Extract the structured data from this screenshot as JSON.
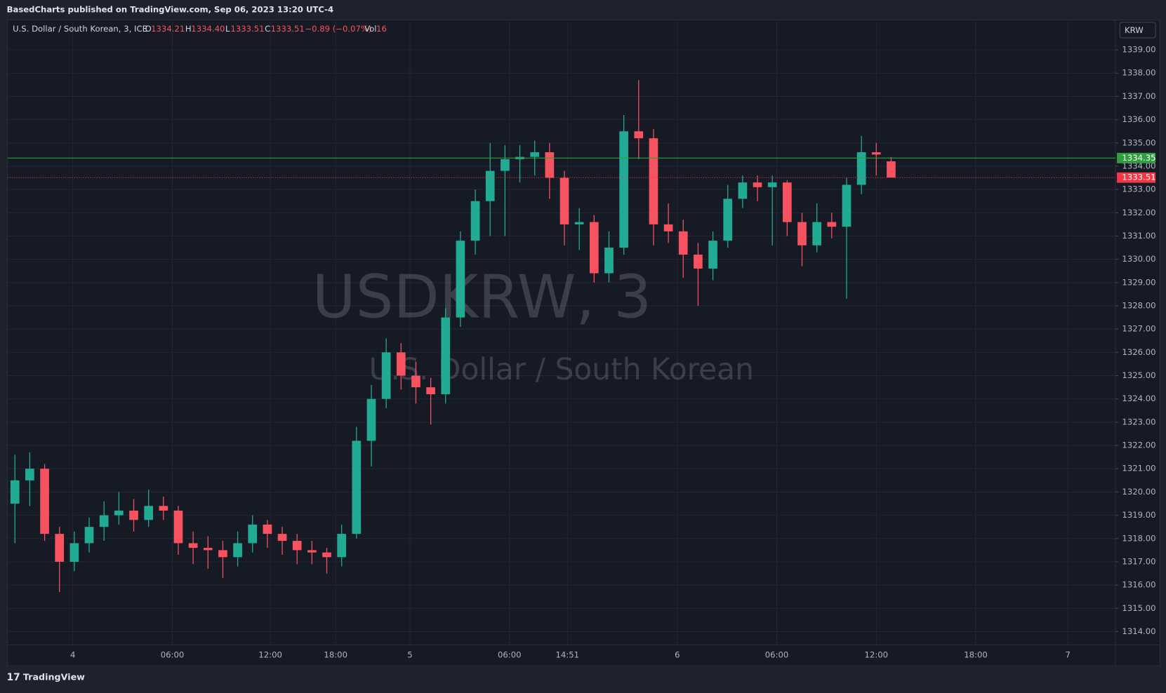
{
  "header": {
    "published": "BasedCharts published on TradingView.com, Sep 06, 2023 13:20 UTC-4"
  },
  "legend": {
    "name": "U.S. Dollar / South Korean, 3, ICE",
    "open_label": "O",
    "open": 1334.21,
    "high_label": "H",
    "high": {
      "value": 1334.4,
      "label": "1334.40"
    },
    "low_label": "L",
    "low": 1333.51,
    "close_label": "C",
    "close": 1333.51,
    "change": "−0.89 (−0.07%)",
    "vol_label": "Vol",
    "vol": 16
  },
  "currency": "KRW",
  "watermark": {
    "symbol": "USDKRW, 3",
    "description": "U.S. Dollar / South Korean"
  },
  "footer": {
    "brand": "TradingView"
  },
  "chart_data": {
    "type": "candlestick",
    "up_color": "#22ab94",
    "down_color": "#f7525f",
    "ylim": [
      1313.43,
      1340.28
    ],
    "yticks": [
      {
        "value": 1314,
        "label": "1314.00"
      },
      {
        "value": 1315,
        "label": "1315.00"
      },
      {
        "value": 1316,
        "label": "1316.00"
      },
      {
        "value": 1317,
        "label": "1317.00"
      },
      {
        "value": 1318,
        "label": "1318.00"
      },
      {
        "value": 1319,
        "label": "1319.00"
      },
      {
        "value": 1320,
        "label": "1320.00"
      },
      {
        "value": 1321,
        "label": "1321.00"
      },
      {
        "value": 1322,
        "label": "1322.00"
      },
      {
        "value": 1323,
        "label": "1323.00"
      },
      {
        "value": 1324,
        "label": "1324.00"
      },
      {
        "value": 1325,
        "label": "1325.00"
      },
      {
        "value": 1326,
        "label": "1326.00"
      },
      {
        "value": 1327,
        "label": "1327.00"
      },
      {
        "value": 1328,
        "label": "1328.00"
      },
      {
        "value": 1329,
        "label": "1329.00"
      },
      {
        "value": 1330,
        "label": "1330.00"
      },
      {
        "value": 1331,
        "label": "1331.00"
      },
      {
        "value": 1332,
        "label": "1332.00"
      },
      {
        "value": 1333,
        "label": "1333.00"
      },
      {
        "value": 1334,
        "label": "1334.00"
      },
      {
        "value": 1335,
        "label": "1335.00"
      },
      {
        "value": 1336,
        "label": "1336.00"
      },
      {
        "value": 1337,
        "label": "1337.00"
      },
      {
        "value": 1338,
        "label": "1338.00"
      },
      {
        "value": 1339,
        "label": "1339.00"
      }
    ],
    "xlim": [
      -0.5,
      74.1
    ],
    "xticks": [
      {
        "value": 3.9,
        "label": "4"
      },
      {
        "value": 10.6,
        "label": "06:00"
      },
      {
        "value": 17.2,
        "label": "12:00"
      },
      {
        "value": 21.6,
        "label": "18:00"
      },
      {
        "value": 26.6,
        "label": "5"
      },
      {
        "value": 33.3,
        "label": "06:00"
      },
      {
        "value": 37.2,
        "label": "14:51"
      },
      {
        "value": 44.6,
        "label": "6"
      },
      {
        "value": 51.3,
        "label": "06:00"
      },
      {
        "value": 58.0,
        "label": "12:00"
      },
      {
        "value": 64.7,
        "label": "18:00"
      },
      {
        "value": 70.9,
        "label": "7"
      }
    ],
    "grid": true,
    "price_lines": [
      {
        "value": 1334.35,
        "color": "#2e9e3f",
        "style": "solid"
      },
      {
        "value": 1333.51,
        "color": "#f23645",
        "style": "dotted"
      }
    ],
    "candles": [
      [
        1319.5,
        1321.6,
        1317.8,
        1320.5
      ],
      [
        1320.5,
        1321.7,
        1319.4,
        1321
      ],
      [
        1321,
        1321.2,
        1317.9,
        1318.2
      ],
      [
        1318.2,
        1318.5,
        1315.7,
        1317
      ],
      [
        1317,
        1318.3,
        1316.6,
        1317.8
      ],
      [
        1317.8,
        1318.9,
        1317.4,
        1318.5
      ],
      [
        1318.5,
        1319.6,
        1317.9,
        1319
      ],
      [
        1319,
        1320,
        1318.6,
        1319.2
      ],
      [
        1319.2,
        1319.7,
        1318.3,
        1318.8
      ],
      [
        1318.8,
        1320.1,
        1318.5,
        1319.4
      ],
      [
        1319.4,
        1319.8,
        1318.8,
        1319.2
      ],
      [
        1319.2,
        1319.4,
        1317.3,
        1317.8
      ],
      [
        1317.8,
        1318.3,
        1316.9,
        1317.6
      ],
      [
        1317.6,
        1318.1,
        1316.7,
        1317.5
      ],
      [
        1317.5,
        1317.9,
        1316.3,
        1317.2
      ],
      [
        1317.2,
        1318.3,
        1316.8,
        1317.8
      ],
      [
        1317.8,
        1319,
        1317.4,
        1318.6
      ],
      [
        1318.6,
        1318.8,
        1317.6,
        1318.2
      ],
      [
        1318.2,
        1318.5,
        1317.3,
        1317.9
      ],
      [
        1317.9,
        1318.2,
        1316.9,
        1317.5
      ],
      [
        1317.5,
        1317.9,
        1316.9,
        1317.4
      ],
      [
        1317.4,
        1317.6,
        1316.5,
        1317.2
      ],
      [
        1317.2,
        1318.6,
        1316.8,
        1318.2
      ],
      [
        1318.2,
        1322.8,
        1318,
        1322.2
      ],
      [
        1322.2,
        1324.6,
        1321.1,
        1324
      ],
      [
        1324,
        1326.6,
        1323.6,
        1326
      ],
      [
        1326,
        1326.4,
        1324.4,
        1325
      ],
      [
        1325,
        1325.6,
        1323.8,
        1324.5
      ],
      [
        1324.5,
        1324.9,
        1322.9,
        1324.2
      ],
      [
        1324.2,
        1327.9,
        1323.8,
        1327.5
      ],
      [
        1327.5,
        1331.2,
        1327.1,
        1330.8
      ],
      [
        1330.8,
        1333,
        1330.2,
        1332.5
      ],
      [
        1332.5,
        1335,
        1331,
        1333.8
      ],
      [
        1333.8,
        1334.9,
        1331,
        1334.3
      ],
      [
        1334.3,
        1334.9,
        1333.3,
        1334.4
      ],
      [
        1334.4,
        1335.1,
        1333.6,
        1334.6
      ],
      [
        1334.6,
        1335,
        1332.6,
        1333.5
      ],
      [
        1333.5,
        1333.8,
        1330.6,
        1331.5
      ],
      [
        1331.5,
        1332.2,
        1330.4,
        1331.6
      ],
      [
        1331.6,
        1331.9,
        1329,
        1329.4
      ],
      [
        1329.4,
        1331.2,
        1329,
        1330.5
      ],
      [
        1330.5,
        1336.2,
        1330.2,
        1335.5
      ],
      [
        1335.5,
        1337.7,
        1334.3,
        1335.2
      ],
      [
        1335.2,
        1335.6,
        1330.6,
        1331.5
      ],
      [
        1331.5,
        1332.4,
        1330.7,
        1331.2
      ],
      [
        1331.2,
        1331.7,
        1329.2,
        1330.2
      ],
      [
        1330.2,
        1330.7,
        1328,
        1329.6
      ],
      [
        1329.6,
        1331.2,
        1329.1,
        1330.8
      ],
      [
        1330.8,
        1333.2,
        1330.5,
        1332.6
      ],
      [
        1332.6,
        1333.6,
        1332.2,
        1333.3
      ],
      [
        1333.3,
        1333.6,
        1332.5,
        1333.1
      ],
      [
        1333.1,
        1333.6,
        1330.6,
        1333.3
      ],
      [
        1333.3,
        1333.4,
        1331,
        1331.6
      ],
      [
        1331.6,
        1332,
        1329.7,
        1330.6
      ],
      [
        1330.6,
        1332.4,
        1330.3,
        1331.6
      ],
      [
        1331.6,
        1332,
        1330.9,
        1331.4
      ],
      [
        1331.4,
        1333.5,
        1328.3,
        1333.2
      ],
      [
        1333.2,
        1335.3,
        1332.8,
        1334.6
      ],
      [
        1334.6,
        1335,
        1333.6,
        1334.5
      ],
      [
        1334.21,
        1334.4,
        1333.51,
        1333.51
      ]
    ]
  }
}
